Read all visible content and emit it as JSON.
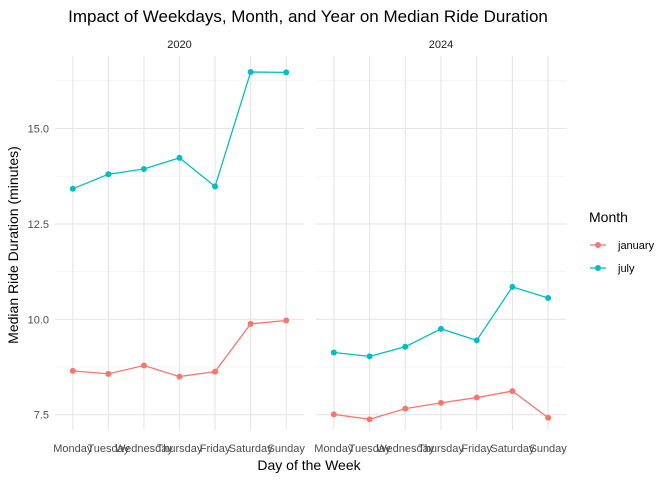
{
  "chart_data": {
    "type": "line",
    "title": "Impact of Weekdays, Month, and Year on Median Ride Duration",
    "xlabel": "Day of the Week",
    "ylabel": "Median Ride Duration (minutes)",
    "categories": [
      "Monday",
      "Tuesday",
      "Wednesday",
      "Thursday",
      "Friday",
      "Saturday",
      "Sunday"
    ],
    "ylim": [
      7.1,
      16.9
    ],
    "yticks": [
      7.5,
      10.0,
      12.5,
      15.0
    ],
    "ytick_labels": [
      "7.5",
      "10.0",
      "12.5",
      "15.0"
    ],
    "grid": true,
    "legend": {
      "title": "Month",
      "placement": "right",
      "entries": [
        "january",
        "july"
      ]
    },
    "colors": {
      "january": "#F8766D",
      "july": "#00BFC4"
    },
    "facets": [
      {
        "label": "2020",
        "series": [
          {
            "name": "january",
            "values": [
              8.65,
              8.57,
              8.79,
              8.5,
              8.63,
              9.88,
              9.97
            ]
          },
          {
            "name": "july",
            "values": [
              13.42,
              13.8,
              13.94,
              14.23,
              13.48,
              16.48,
              16.47
            ]
          }
        ]
      },
      {
        "label": "2024",
        "series": [
          {
            "name": "january",
            "values": [
              7.51,
              7.38,
              7.66,
              7.81,
              7.95,
              8.12,
              7.42
            ]
          },
          {
            "name": "july",
            "values": [
              9.13,
              9.03,
              9.28,
              9.75,
              9.45,
              10.85,
              10.56
            ]
          }
        ]
      }
    ]
  }
}
